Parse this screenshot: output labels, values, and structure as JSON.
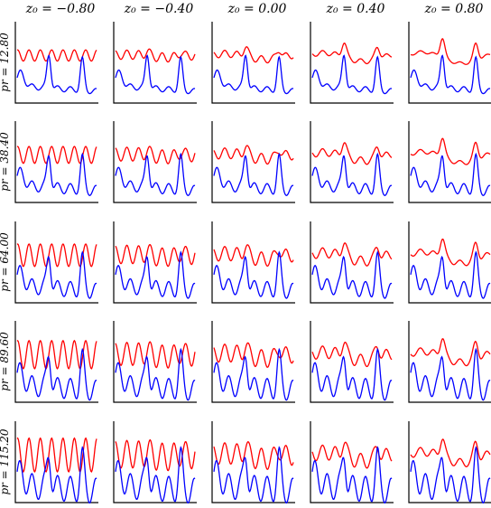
{
  "chart_data": {
    "type": "line",
    "grid": false,
    "rows": 5,
    "cols": 5,
    "column_labels": [
      "z₀ = −0.80",
      "z₀ = −0.40",
      "z₀ = 0.00",
      "z₀ = 0.40",
      "z₀ = 0.80"
    ],
    "row_labels": [
      "pr = 12.80",
      "pr = 38.40",
      "pr = 64.00",
      "pr = 89.60",
      "pr = 115.20"
    ],
    "z0_values": [
      -0.8,
      -0.4,
      0.0,
      0.4,
      0.8
    ],
    "pr_values": [
      12.8,
      38.4,
      64.0,
      89.6,
      115.2
    ],
    "series_colors": [
      "#ff0000",
      "#0000ff"
    ],
    "axes_ticks_visible": false
  }
}
